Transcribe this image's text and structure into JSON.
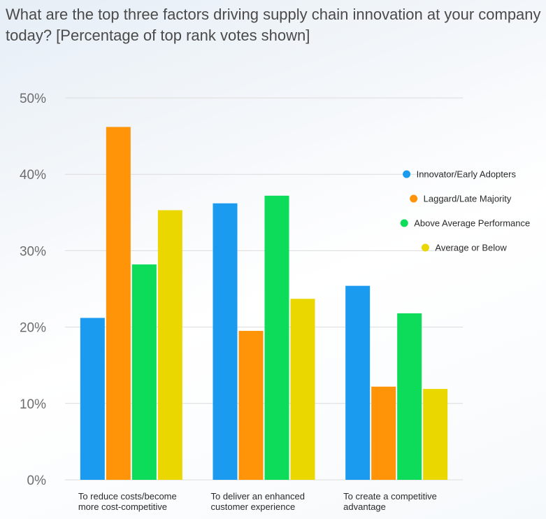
{
  "chart_data": {
    "type": "bar",
    "title": "What are the top three factors driving supply chain innovation at your company today? [Percentage of top rank votes shown]",
    "categories": [
      [
        "To reduce costs/become",
        "more cost-competitive"
      ],
      [
        "To deliver an enhanced",
        "customer experience"
      ],
      [
        "To create a competitive",
        "advantage"
      ]
    ],
    "series": [
      {
        "name": "Innovator/Early Adopters",
        "color": "#1a9bf0",
        "values": [
          21.2,
          36.2,
          25.4
        ]
      },
      {
        "name": "Laggard/Late Majority",
        "color": "#ff9408",
        "values": [
          46.2,
          19.5,
          12.2
        ]
      },
      {
        "name": "Above Average Performance",
        "color": "#0ddc5a",
        "values": [
          28.2,
          37.2,
          21.8
        ]
      },
      {
        "name": "Average or Below",
        "color": "#ead700",
        "values": [
          35.3,
          23.7,
          11.9
        ]
      }
    ],
    "yticks": [
      "0%",
      "10%",
      "20%",
      "30%",
      "40%",
      "50%"
    ],
    "ylim": [
      0,
      50
    ],
    "grid": true,
    "legend_position": "right"
  }
}
